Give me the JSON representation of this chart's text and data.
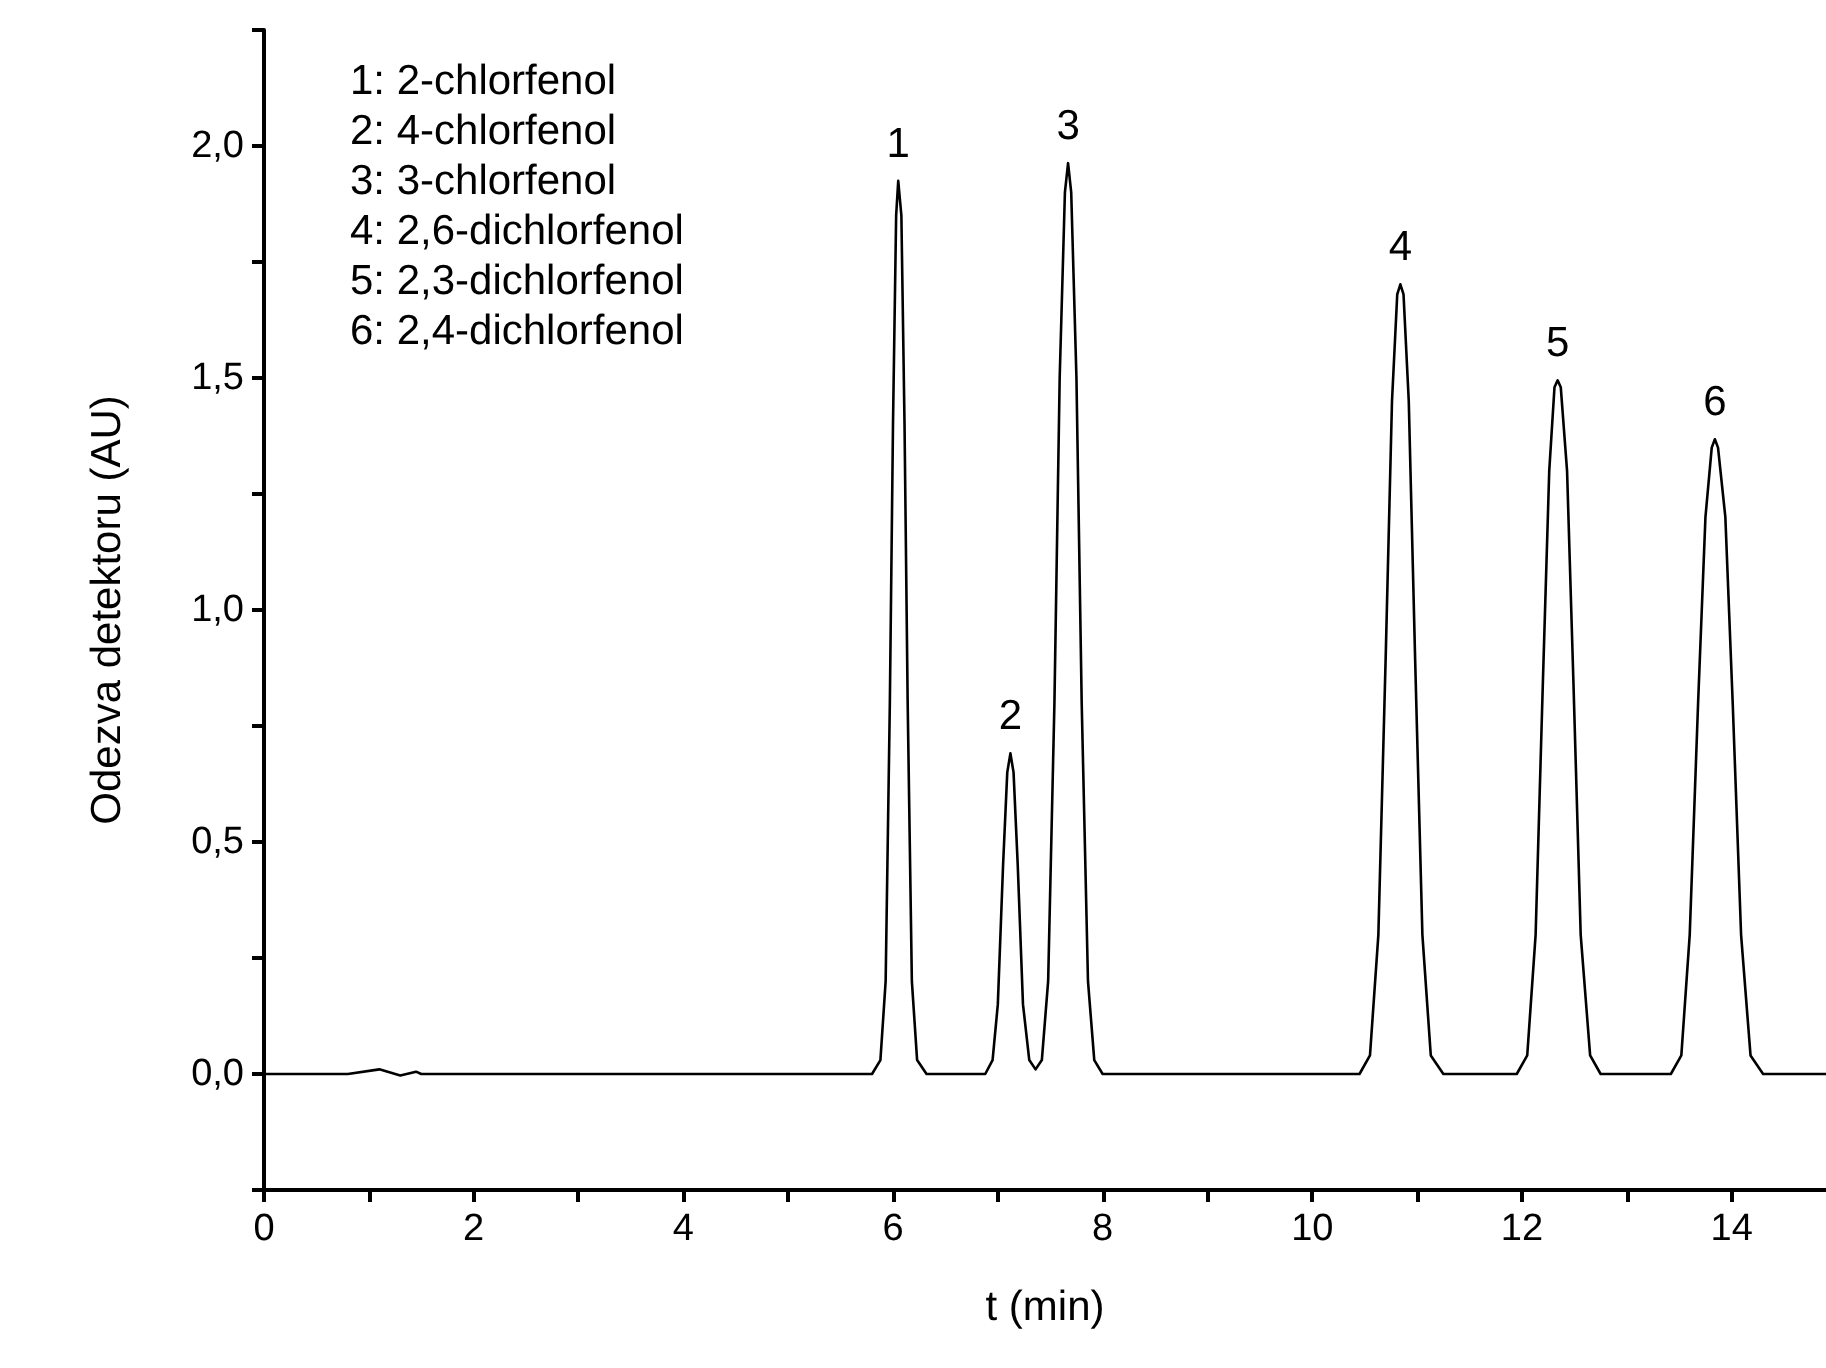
{
  "chart_data": {
    "type": "line",
    "xlabel": "t (min)",
    "ylabel": "Odezva detektoru (AU)",
    "x": [
      0,
      0.8,
      1.1,
      1.3,
      1.45,
      1.5,
      5.8,
      5.88,
      5.93,
      5.97,
      6.0,
      6.03,
      6.05,
      6.08,
      6.11,
      6.14,
      6.18,
      6.23,
      6.32,
      6.88,
      6.95,
      7.0,
      7.05,
      7.09,
      7.12,
      7.15,
      7.19,
      7.24,
      7.3,
      7.36,
      7.42,
      7.48,
      7.54,
      7.59,
      7.64,
      7.67,
      7.7,
      7.75,
      7.8,
      7.86,
      7.92,
      8.0,
      10.45,
      10.55,
      10.63,
      10.7,
      10.76,
      10.81,
      10.84,
      10.87,
      10.92,
      10.98,
      11.05,
      11.13,
      11.25,
      11.95,
      12.05,
      12.13,
      12.2,
      12.26,
      12.31,
      12.34,
      12.37,
      12.43,
      12.49,
      12.56,
      12.65,
      12.75,
      13.42,
      13.52,
      13.6,
      13.68,
      13.75,
      13.81,
      13.84,
      13.87,
      13.94,
      14.01,
      14.09,
      14.18,
      14.3,
      14.9
    ],
    "series": [
      {
        "color": "#000000",
        "values": [
          0,
          0,
          0.01,
          -0.003,
          0.005,
          0,
          0,
          0.03,
          0.2,
          0.8,
          1.4,
          1.85,
          1.925,
          1.85,
          1.4,
          0.8,
          0.2,
          0.03,
          0,
          0,
          0.03,
          0.15,
          0.45,
          0.65,
          0.691,
          0.65,
          0.45,
          0.15,
          0.03,
          0.01,
          0.03,
          0.2,
          0.8,
          1.5,
          1.9,
          1.963,
          1.9,
          1.5,
          0.8,
          0.2,
          0.03,
          0,
          0,
          0.04,
          0.3,
          0.9,
          1.45,
          1.68,
          1.702,
          1.68,
          1.45,
          0.9,
          0.3,
          0.04,
          0,
          0,
          0.04,
          0.3,
          0.85,
          1.3,
          1.48,
          1.495,
          1.48,
          1.3,
          0.85,
          0.3,
          0.04,
          0,
          0,
          0.04,
          0.3,
          0.8,
          1.2,
          1.35,
          1.368,
          1.35,
          1.2,
          0.8,
          0.3,
          0.04,
          0,
          0
        ]
      }
    ],
    "xlim": [
      0,
      14.9
    ],
    "xticks": [
      0,
      {
        "value": 1,
        "label": null
      },
      2,
      {
        "value": 3,
        "label": null
      },
      4,
      {
        "value": 5,
        "label": null
      },
      6,
      {
        "value": 7,
        "label": null
      },
      8,
      {
        "value": 9,
        "label": null
      },
      10,
      {
        "value": 11,
        "label": null
      },
      12,
      {
        "value": 13,
        "label": null
      },
      14
    ],
    "ylim": [
      -0.25,
      2.25
    ],
    "yticks": [
      {
        "value": -0.25,
        "label": null
      },
      {
        "value": 0,
        "label": "0,0"
      },
      {
        "value": 0.25,
        "label": null
      },
      {
        "value": 0.5,
        "label": "0,5"
      },
      {
        "value": 0.75,
        "label": null
      },
      {
        "value": 1,
        "label": "1,0"
      },
      {
        "value": 1.25,
        "label": null
      },
      {
        "value": 1.5,
        "label": "1,5"
      },
      {
        "value": 1.75,
        "label": null
      },
      {
        "value": 2,
        "label": "2,0"
      },
      {
        "value": 2.25,
        "label": null
      }
    ],
    "annotations": [
      "1: 2-chlorfenol",
      "2: 4-chlorfenol",
      "3: 3-chlorfenol",
      "4: 2,6-dichlorfenol",
      "5: 2,3-dichlorfenol",
      "6: 2,4-dichlorfenol",
      {
        "text": "1",
        "x": 6.05,
        "y": 1.925
      },
      {
        "text": "2",
        "x": 7.12,
        "y": 0.691
      },
      {
        "text": "3",
        "x": 7.67,
        "y": 1.963
      },
      {
        "text": "4",
        "x": 10.84,
        "y": 1.702
      },
      {
        "text": "5",
        "x": 12.34,
        "y": 1.495
      },
      {
        "text": "6",
        "x": 13.84,
        "y": 1.368
      }
    ],
    "grid": false,
    "marker": "none",
    "line_style": "solid"
  }
}
